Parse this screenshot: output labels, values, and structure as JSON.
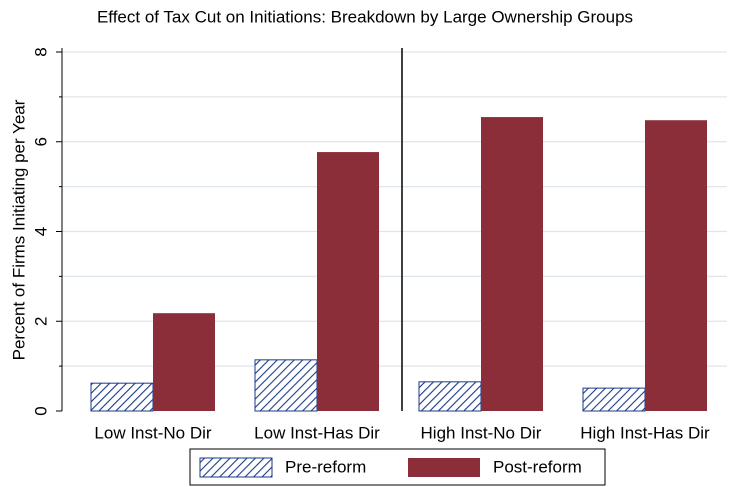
{
  "chart_data": {
    "type": "bar",
    "title": "Effect of Tax Cut on Initiations: Breakdown by Large Ownership Groups",
    "y_label": "Percent of Firms Initiating per Year",
    "categories": [
      "Low Inst-No Dir",
      "Low Inst-Has Dir",
      "High Inst-No Dir",
      "High Inst-Has Dir"
    ],
    "series": [
      {
        "name": "Pre-reform",
        "color": "#1a3a8a",
        "values": [
          0.62,
          1.14,
          0.65,
          0.51
        ]
      },
      {
        "name": "Post-reform",
        "color": "#8b2e3a",
        "values": [
          2.18,
          5.77,
          6.55,
          6.48
        ]
      }
    ],
    "ylim": [
      0,
      8
    ],
    "yticks": [
      0,
      2,
      4,
      6,
      8
    ],
    "minor_yticks": [
      1,
      3,
      5,
      7
    ],
    "grid": true
  }
}
